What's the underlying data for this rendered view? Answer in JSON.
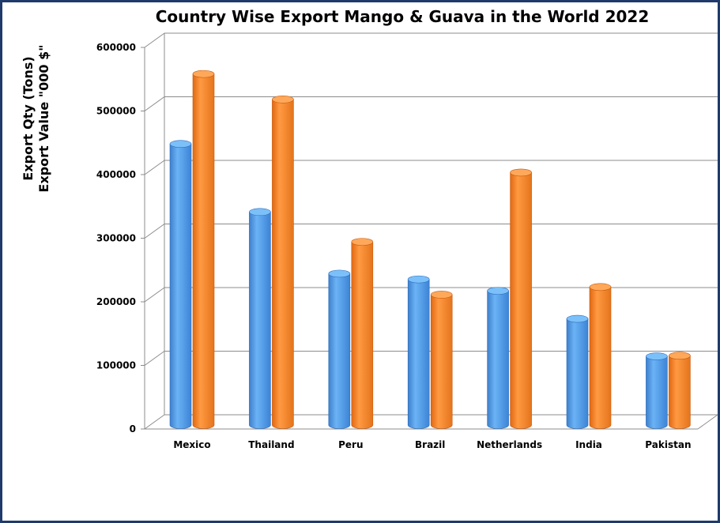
{
  "chart_data": {
    "type": "bar",
    "title": "Country Wise Export Mango & Guava in the World 2022",
    "ylabel": [
      "Export Qty (Tons)",
      "Export Value \"000 $\""
    ],
    "xlabel": "",
    "categories": [
      "Mexico",
      "Thailand",
      "Peru",
      "Brazil",
      "Netherlands",
      "India",
      "Pakistan"
    ],
    "series": [
      {
        "name": "",
        "color": "#5BA3EE",
        "values": [
          447000,
          340000,
          243000,
          234000,
          216000,
          172000,
          113000
        ]
      },
      {
        "name": "",
        "color": "#FF8A2E",
        "values": [
          557000,
          517000,
          293000,
          210000,
          402000,
          222000,
          114000
        ]
      }
    ],
    "ylim": [
      0,
      600000
    ],
    "yticks": [
      0,
      100000,
      200000,
      300000,
      400000,
      500000,
      600000
    ],
    "grid": true,
    "legend": "none",
    "style": "3d-cylinder"
  }
}
